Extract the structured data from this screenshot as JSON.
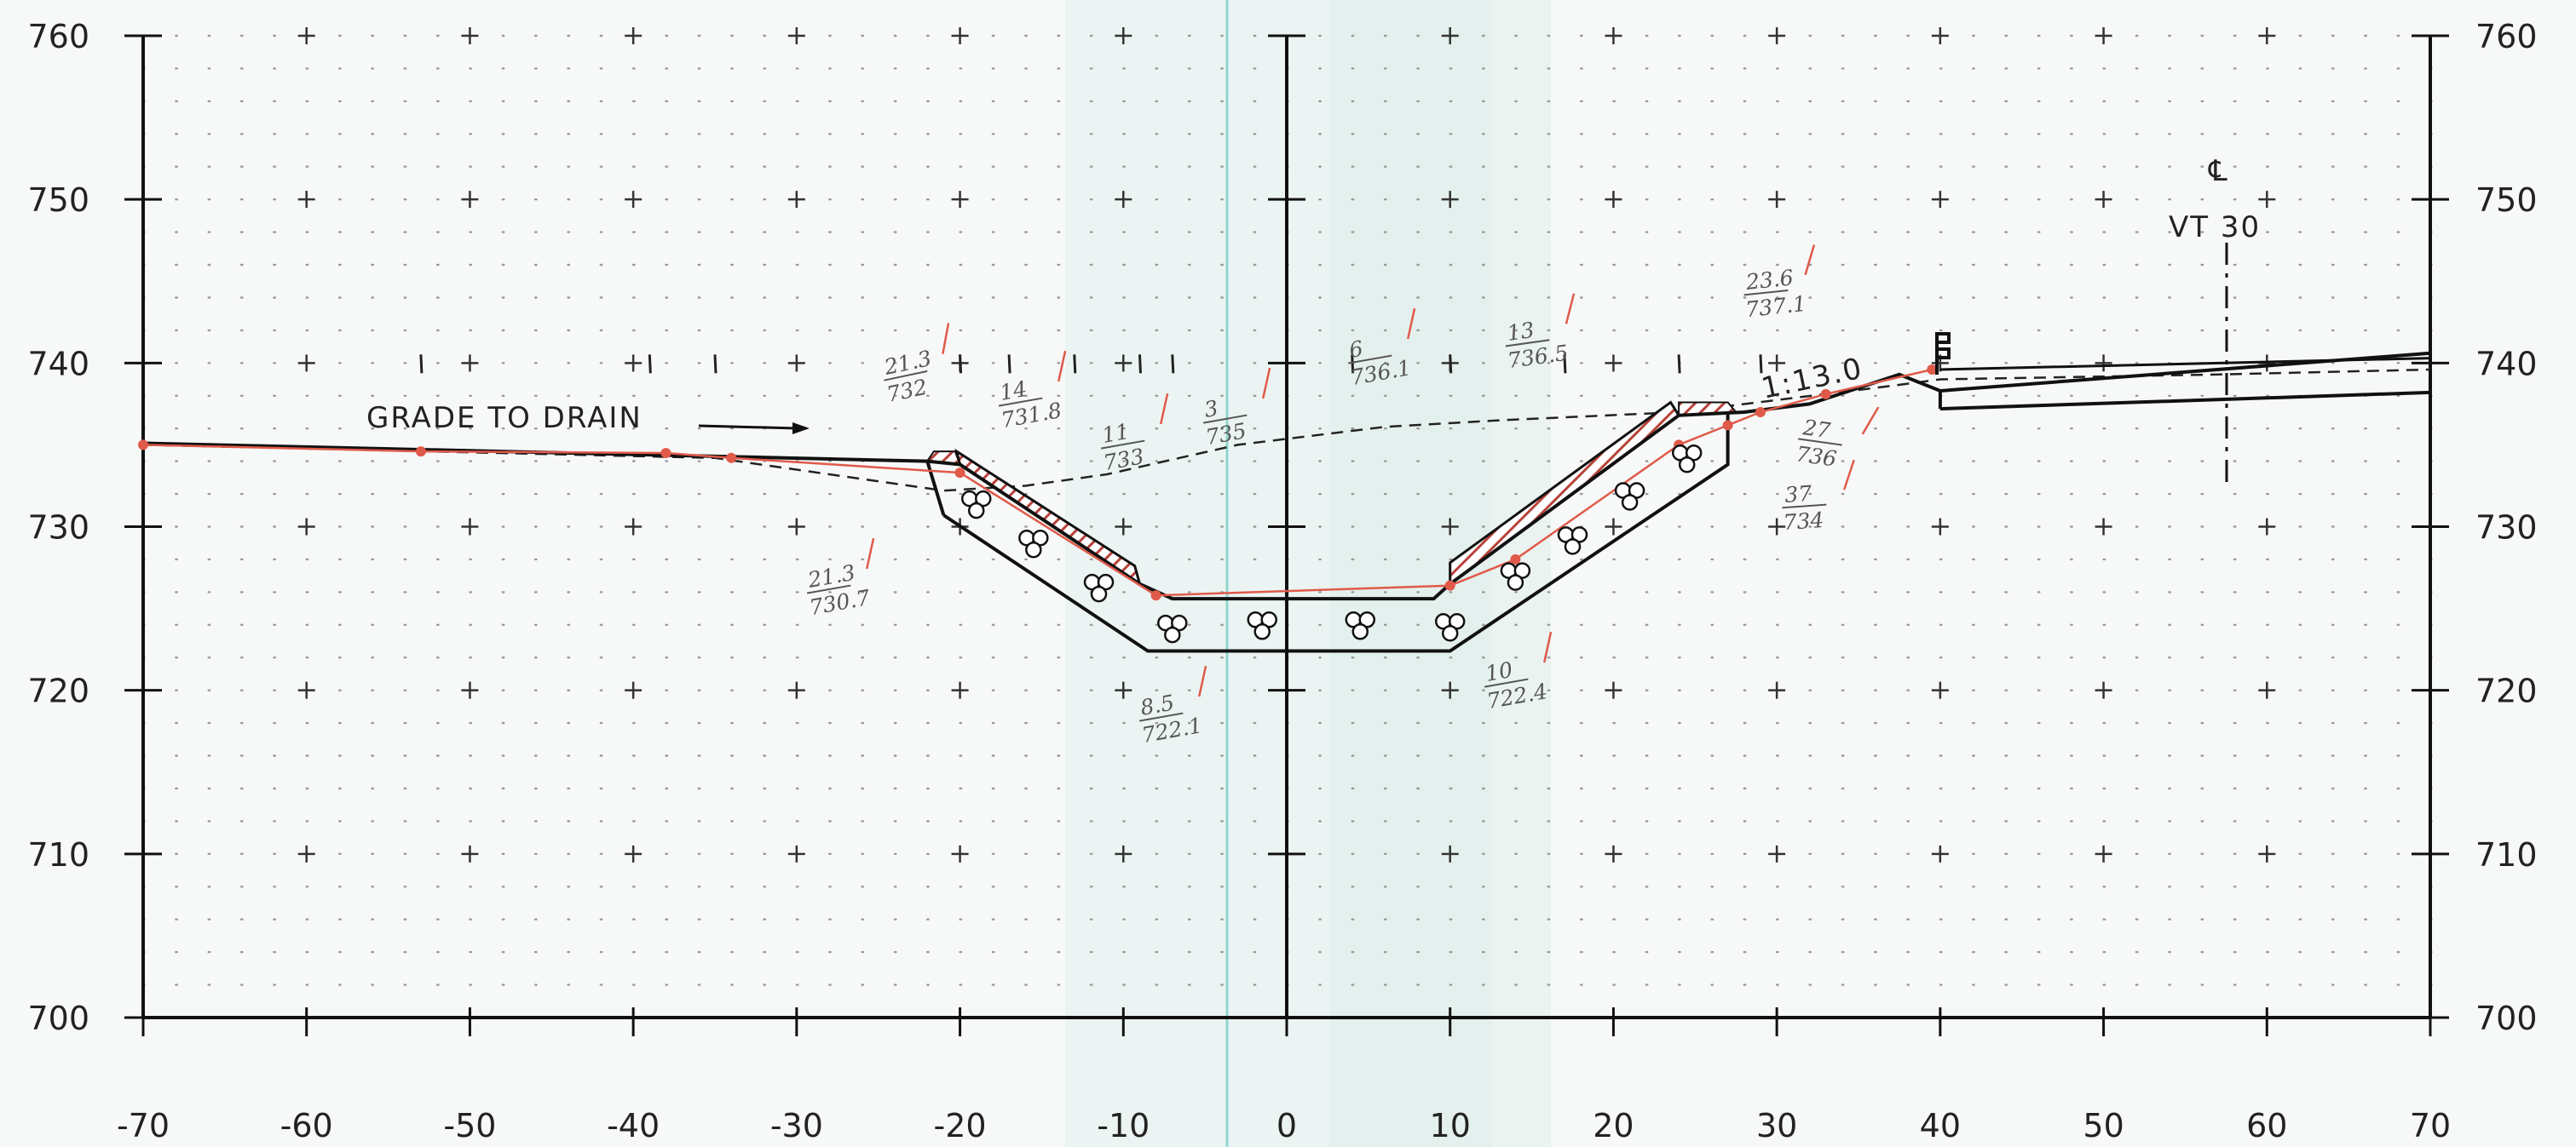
{
  "axes": {
    "x_ticks": [
      "-70",
      "-60",
      "-50",
      "-40",
      "-30",
      "-20",
      "-10",
      "0",
      "10",
      "20",
      "30",
      "40",
      "50",
      "60",
      "70"
    ],
    "y_ticks": [
      "760",
      "750",
      "740",
      "730",
      "720",
      "710",
      "700"
    ],
    "xlim": [
      -70,
      70
    ],
    "ylim": [
      700,
      760
    ]
  },
  "annotations": {
    "grade_to_drain": "GRADE TO DRAIN",
    "centerline_symbol": "℄",
    "centerline_label": "VT 30",
    "slope_label": "1:13.0"
  },
  "handwritten": [
    {
      "id": "h1",
      "top": "21.3",
      "bottom": "732"
    },
    {
      "id": "h2",
      "top": "14",
      "bottom": "731.8"
    },
    {
      "id": "h3",
      "top": "11",
      "bottom": "733"
    },
    {
      "id": "h4",
      "top": "3",
      "bottom": "735"
    },
    {
      "id": "h5",
      "top": "6",
      "bottom": "736.1"
    },
    {
      "id": "h6",
      "top": "13",
      "bottom": "736.5"
    },
    {
      "id": "h7",
      "top": "23.6",
      "bottom": "737.1"
    },
    {
      "id": "h8",
      "top": "27",
      "bottom": "736"
    },
    {
      "id": "h9",
      "top": "37",
      "bottom": "734"
    },
    {
      "id": "h10",
      "top": "21.3",
      "bottom": "730.7"
    },
    {
      "id": "h11",
      "top": "8.5",
      "bottom": "722.1"
    },
    {
      "id": "h12",
      "top": "10",
      "bottom": "722.4"
    }
  ],
  "profiles": {
    "proposed_grade": [
      [
        -70,
        735.1
      ],
      [
        -22,
        734.0
      ],
      [
        -20,
        733.8
      ],
      [
        -9,
        726.5
      ],
      [
        -7,
        725.6
      ],
      [
        9,
        725.6
      ],
      [
        10,
        726.5
      ],
      [
        24,
        736.8
      ],
      [
        28,
        737.0
      ],
      [
        32,
        737.5
      ],
      [
        37.5,
        739.3
      ],
      [
        40,
        738.3
      ],
      [
        70,
        740.6
      ]
    ],
    "existing_ground": [
      [
        -70,
        735.0
      ],
      [
        -35,
        734.2
      ],
      [
        -21,
        732.2
      ],
      [
        -16,
        732.5
      ],
      [
        -11,
        733.2
      ],
      [
        -3,
        735.0
      ],
      [
        6,
        736.1
      ],
      [
        13,
        736.5
      ],
      [
        24,
        737.0
      ],
      [
        37,
        738.6
      ],
      [
        40,
        739.0
      ],
      [
        57,
        739.3
      ],
      [
        70,
        739.6
      ]
    ],
    "surveyed_points": [
      [
        -70,
        735.0
      ],
      [
        -53,
        734.6
      ],
      [
        -38,
        734.5
      ],
      [
        -34,
        734.2
      ],
      [
        -20,
        733.3
      ],
      [
        -8,
        725.8
      ],
      [
        10,
        726.4
      ],
      [
        14,
        728.0
      ],
      [
        24,
        735.0
      ],
      [
        27,
        736.2
      ],
      [
        29,
        737.0
      ],
      [
        33,
        738.1
      ],
      [
        39.5,
        739.6
      ]
    ],
    "channel_bottom": [
      [
        -21,
        730.7
      ],
      [
        -8.5,
        722.4
      ],
      [
        10,
        722.4
      ],
      [
        27,
        733.8
      ],
      [
        27,
        737.0
      ]
    ],
    "pavement_lower": [
      [
        40,
        737.2
      ],
      [
        70,
        738.2
      ]
    ],
    "rock_centers": [
      [
        -19,
        731.4
      ],
      [
        -15.5,
        729.0
      ],
      [
        -11.5,
        726.3
      ],
      [
        -7,
        723.8
      ],
      [
        -1.5,
        724.0
      ],
      [
        4.5,
        724.0
      ],
      [
        10,
        723.9
      ],
      [
        14,
        727.0
      ],
      [
        17.5,
        729.2
      ],
      [
        21,
        731.9
      ],
      [
        24.5,
        734.2
      ]
    ]
  },
  "colors": {
    "background": "#f7f9f8",
    "grid": "#bbbbbb",
    "line": "#111111",
    "survey": "#e05a4a",
    "hatch": "#b8413a",
    "cyan_line": "#8fd6cc"
  }
}
